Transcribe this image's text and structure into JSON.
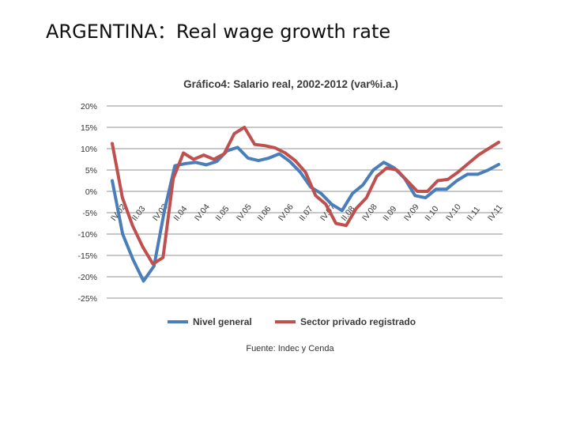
{
  "slide": {
    "title": "ARGENTINA：Real wage growth rate"
  },
  "chart_data": {
    "type": "line",
    "title": "Gráfico4: Salario real, 2002-2012  (var%i.a.)",
    "source": "Fuente: Indec y Cenda",
    "ylim": [
      -25,
      20
    ],
    "yticks": [
      "20%",
      "15%",
      "10%",
      "5%",
      "0%",
      "-5%",
      "-10%",
      "-15%",
      "-20%",
      "-25%"
    ],
    "ytick_values": [
      20,
      15,
      10,
      5,
      0,
      -5,
      -10,
      -15,
      -20,
      -25
    ],
    "grid": true,
    "legend_position": "bottom",
    "x_labels": [
      "IV.02",
      "II.03",
      "IV.03",
      "II.04",
      "IV.04",
      "II.05",
      "IV.05",
      "II.06",
      "IV.06",
      "II.07",
      "IV.07",
      "II.08",
      "IV.08",
      "II.09",
      "IV.09",
      "II.10",
      "IV.10",
      "II.11",
      "IV.11"
    ],
    "series": [
      {
        "name": "Nivel general",
        "color": "#4a7ebb",
        "values": [
          2.5,
          -10,
          -16,
          -21,
          -17.5,
          -4.5,
          6,
          6.5,
          6.8,
          6.2,
          7,
          9.5,
          10.3,
          7.8,
          7.2,
          7.8,
          8.8,
          7,
          4.5,
          1,
          -0.5,
          -3,
          -4.5,
          -0.5,
          1.5,
          5,
          6.8,
          5.5,
          3,
          -1,
          -1.5,
          0.5,
          0.5,
          2.5,
          4,
          4,
          5,
          6.3
        ]
      },
      {
        "name": "Sector privado registrado",
        "color": "#c0504d",
        "values": [
          11.2,
          -1.5,
          -8,
          -13,
          -17,
          -15.5,
          3,
          9,
          7.5,
          8.5,
          7.5,
          8.8,
          13.5,
          15,
          11,
          10.7,
          10.2,
          9,
          7.2,
          4.5,
          -1,
          -3,
          -7.5,
          -8,
          -4,
          -1.5,
          3.5,
          5.5,
          5,
          2.5,
          0,
          0,
          2.5,
          2.8,
          4.5,
          6.5,
          8.5,
          10,
          11.5
        ]
      }
    ]
  }
}
